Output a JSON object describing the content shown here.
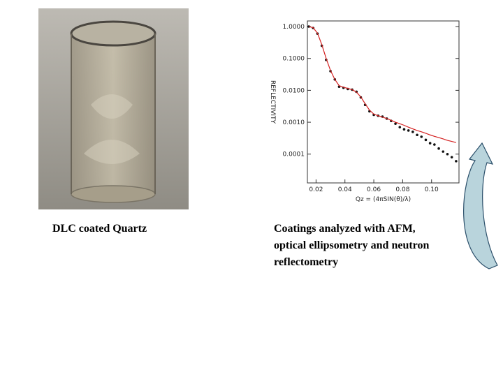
{
  "photo_caption": "DLC coated Quartz",
  "plot_caption": [
    "Coatings analyzed with AFM,",
    "optical ellipsometry and neutron",
    "reflectometry"
  ],
  "chart_data": {
    "type": "line",
    "x_label": "Qz = (4πSIN(θ)/λ)",
    "y_label": "REFLECTIVITY",
    "log_y": true,
    "xlim": [
      0.014,
      0.119
    ],
    "ylim": [
      1.25e-05,
      1.5
    ],
    "xticks": [
      0.02,
      0.04,
      0.06,
      0.08,
      {
        "value": 0.1,
        "label": "0.10"
      }
    ],
    "yticks": [
      {
        "value": 1,
        "label": "1.0000"
      },
      {
        "value": 0.1,
        "label": "0.1000"
      },
      {
        "value": 0.01,
        "label": "0.0100"
      },
      {
        "value": 0.001,
        "label": "0.0010"
      },
      {
        "value": 0.0001,
        "label": "0.0001"
      }
    ],
    "x": [
      0.015,
      0.018,
      0.021,
      0.024,
      0.027,
      0.03,
      0.033,
      0.036,
      0.039,
      0.042,
      0.045,
      0.048,
      0.051,
      0.054,
      0.057,
      0.06,
      0.063,
      0.066,
      0.069,
      0.072,
      0.075,
      0.078,
      0.081,
      0.084,
      0.087,
      0.09,
      0.093,
      0.096,
      0.099,
      0.102,
      0.105,
      0.108,
      0.111,
      0.114,
      0.117
    ],
    "series": [
      {
        "color": "#111111",
        "marker": true,
        "values": [
          1.0,
          0.9,
          0.6,
          0.25,
          0.09,
          0.04,
          0.022,
          0.013,
          0.012,
          0.011,
          0.0105,
          0.009,
          0.006,
          0.0035,
          0.0022,
          0.0017,
          0.0016,
          0.0015,
          0.0013,
          0.0011,
          0.0009,
          0.0007,
          0.0006,
          0.00055,
          0.0005,
          0.0004,
          0.00035,
          0.00028,
          0.00022,
          0.0002,
          0.00015,
          0.00012,
          0.0001,
          8e-05,
          6e-05
        ]
      },
      {
        "color": "#d42020",
        "marker": false,
        "values": [
          1.0,
          0.92,
          0.62,
          0.27,
          0.1,
          0.042,
          0.022,
          0.014,
          0.0125,
          0.0115,
          0.0105,
          0.0088,
          0.0062,
          0.0038,
          0.0024,
          0.0018,
          0.0016,
          0.00145,
          0.0013,
          0.00115,
          0.001,
          0.0009,
          0.0008,
          0.0007,
          0.00062,
          0.00055,
          0.0005,
          0.00045,
          0.0004,
          0.00036,
          0.00033,
          0.0003,
          0.00027,
          0.00025,
          0.00023
        ]
      }
    ]
  }
}
